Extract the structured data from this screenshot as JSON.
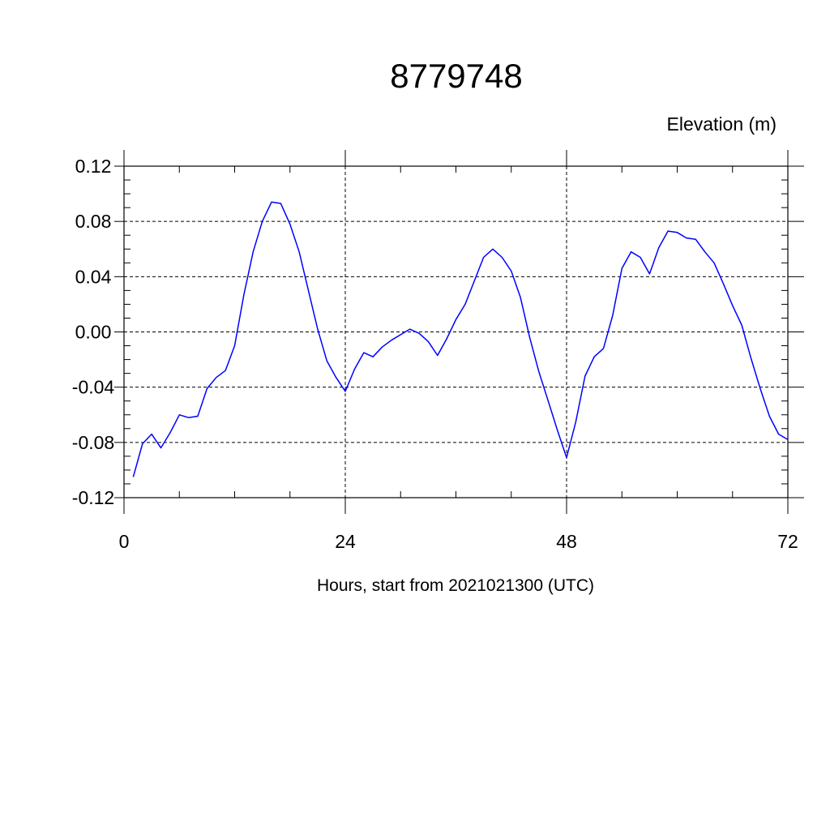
{
  "chart_data": {
    "type": "line",
    "title": "8779748",
    "ylabel": "Elevation (m)",
    "xlabel": "Hours, start from 2021021300 (UTC)",
    "xlim": [
      0,
      72
    ],
    "ylim": [
      -0.12,
      0.12
    ],
    "x_ticks": [
      0,
      24,
      48,
      72
    ],
    "x_tick_labels": [
      "0",
      "24",
      "48",
      "72"
    ],
    "y_ticks": [
      0.12,
      0.08,
      0.04,
      0.0,
      -0.04,
      -0.08,
      -0.12
    ],
    "y_tick_labels": [
      "0.12",
      "0.08",
      "0.04",
      "0.00",
      "-0.04",
      "-0.08",
      "-0.12"
    ],
    "grid": true,
    "colors": {
      "series": "#0000ff",
      "axis": "#000000"
    },
    "series": [
      {
        "x": [
          1,
          2,
          3,
          4,
          5,
          6,
          7,
          8,
          9,
          10,
          11,
          12,
          13,
          14,
          15,
          16,
          17,
          18,
          19,
          20,
          21,
          22,
          23,
          24,
          25,
          26,
          27,
          28,
          29,
          30,
          31,
          32,
          33,
          34,
          35,
          36,
          37,
          38,
          39,
          40,
          41,
          42,
          43,
          44,
          45,
          46,
          47,
          48,
          49,
          50,
          51,
          52,
          53,
          54,
          55,
          56,
          57,
          58,
          59,
          60,
          61,
          62,
          63,
          64,
          65,
          66,
          67,
          68,
          69,
          70,
          71,
          72
        ],
        "values": [
          -0.105,
          -0.081,
          -0.074,
          -0.084,
          -0.073,
          -0.06,
          -0.062,
          -0.061,
          -0.041,
          -0.033,
          -0.028,
          -0.01,
          0.027,
          0.058,
          0.08,
          0.094,
          0.093,
          0.078,
          0.058,
          0.03,
          0.002,
          -0.021,
          -0.033,
          -0.043,
          -0.027,
          -0.015,
          -0.018,
          -0.011,
          -0.006,
          -0.002,
          0.002,
          -0.001,
          -0.007,
          -0.017,
          -0.005,
          0.009,
          0.02,
          0.037,
          0.054,
          0.06,
          0.054,
          0.044,
          0.025,
          -0.004,
          -0.029,
          -0.05,
          -0.071,
          -0.091,
          -0.065,
          -0.032,
          -0.018,
          -0.012,
          0.012,
          0.046,
          0.058,
          0.054,
          0.042,
          0.061,
          0.073,
          0.072,
          0.068,
          0.067,
          0.058,
          0.05,
          0.035,
          0.019,
          0.005,
          -0.019,
          -0.041,
          -0.061,
          -0.074,
          -0.078
        ]
      }
    ]
  }
}
